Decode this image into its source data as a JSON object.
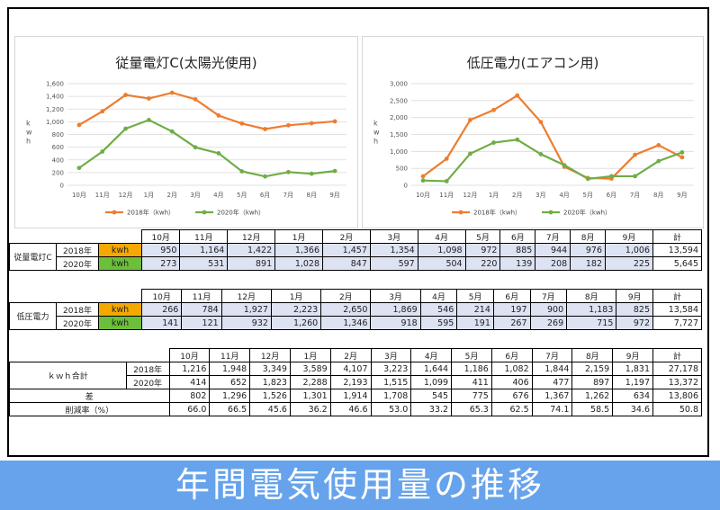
{
  "months": [
    "10月",
    "11月",
    "12月",
    "1月",
    "2月",
    "3月",
    "4月",
    "5月",
    "6月",
    "7月",
    "8月",
    "9月"
  ],
  "total_label": "計",
  "kwh_label": "kwh",
  "chart_data": [
    {
      "type": "line",
      "title": "従量電灯C(太陽光使用)",
      "ylabel": "kwh",
      "categories": [
        "10月",
        "11月",
        "12月",
        "1月",
        "2月",
        "3月",
        "4月",
        "5月",
        "6月",
        "7月",
        "8月",
        "9月"
      ],
      "ylim": [
        0,
        1600
      ],
      "yticks": [
        "0",
        "200",
        "400",
        "600",
        "800",
        "1,000",
        "1,200",
        "1,400",
        "1,600"
      ],
      "ytick_values": [
        0,
        200,
        400,
        600,
        800,
        1000,
        1200,
        1400,
        1600
      ],
      "legend_position": "bottom",
      "series": [
        {
          "name": "2018年（kwh）",
          "color": "#ed7d31",
          "values": [
            950,
            1164,
            1422,
            1366,
            1457,
            1354,
            1098,
            972,
            885,
            944,
            976,
            1006
          ]
        },
        {
          "name": "2020年（kwh）",
          "color": "#70ad47",
          "values": [
            273,
            531,
            891,
            1028,
            847,
            597,
            504,
            220,
            139,
            208,
            182,
            225
          ]
        }
      ]
    },
    {
      "type": "line",
      "title": "低圧電力(エアコン用)",
      "ylabel": "kwh",
      "categories": [
        "10月",
        "11月",
        "12月",
        "1月",
        "2月",
        "3月",
        "4月",
        "5月",
        "6月",
        "7月",
        "8月",
        "9月"
      ],
      "ylim": [
        0,
        3000
      ],
      "yticks": [
        "0",
        "500",
        "1,000",
        "1,500",
        "2,000",
        "2,500",
        "3,000"
      ],
      "ytick_values": [
        0,
        500,
        1000,
        1500,
        2000,
        2500,
        3000
      ],
      "legend_position": "bottom",
      "series": [
        {
          "name": "2018年（kwh）",
          "color": "#ed7d31",
          "values": [
            266,
            784,
            1927,
            2223,
            2650,
            1869,
            546,
            214,
            197,
            900,
            1183,
            825
          ]
        },
        {
          "name": "2020年（kwh）",
          "color": "#70ad47",
          "values": [
            141,
            121,
            932,
            1260,
            1346,
            918,
            595,
            191,
            267,
            269,
            715,
            972
          ]
        }
      ]
    }
  ],
  "table1": {
    "label": "従量電灯C",
    "rows": [
      {
        "year": "2018年",
        "values": [
          "950",
          "1,164",
          "1,422",
          "1,366",
          "1,457",
          "1,354",
          "1,098",
          "972",
          "885",
          "944",
          "976",
          "1,006"
        ],
        "total": "13,594"
      },
      {
        "year": "2020年",
        "values": [
          "273",
          "531",
          "891",
          "1,028",
          "847",
          "597",
          "504",
          "220",
          "139",
          "208",
          "182",
          "225"
        ],
        "total": "5,645"
      }
    ]
  },
  "table2": {
    "label": "低圧電力",
    "rows": [
      {
        "year": "2018年",
        "values": [
          "266",
          "784",
          "1,927",
          "2,223",
          "2,650",
          "1,869",
          "546",
          "214",
          "197",
          "900",
          "1,183",
          "825"
        ],
        "total": "13,584"
      },
      {
        "year": "2020年",
        "values": [
          "141",
          "121",
          "932",
          "1,260",
          "1,346",
          "918",
          "595",
          "191",
          "267",
          "269",
          "715",
          "972"
        ],
        "total": "7,727"
      }
    ]
  },
  "table3": {
    "label": "ｋｗｈ合計",
    "rows": [
      {
        "year": "2018年",
        "values": [
          "1,216",
          "1,948",
          "3,349",
          "3,589",
          "4,107",
          "3,223",
          "1,644",
          "1,186",
          "1,082",
          "1,844",
          "2,159",
          "1,831"
        ],
        "total": "27,178"
      },
      {
        "year": "2020年",
        "values": [
          "414",
          "652",
          "1,823",
          "2,288",
          "2,193",
          "1,515",
          "1,099",
          "411",
          "406",
          "477",
          "897",
          "1,197"
        ],
        "total": "13,372"
      }
    ],
    "diff_label": "差",
    "diff": {
      "values": [
        "802",
        "1,296",
        "1,526",
        "1,301",
        "1,914",
        "1,708",
        "545",
        "775",
        "676",
        "1,367",
        "1,262",
        "634"
      ],
      "total": "13,806"
    },
    "rate_label": "削減率（%）",
    "rate": {
      "values": [
        "66.0",
        "66.5",
        "45.6",
        "36.2",
        "46.6",
        "53.0",
        "33.2",
        "65.3",
        "62.5",
        "74.1",
        "58.5",
        "34.6"
      ],
      "total": "50.8"
    }
  },
  "banner_text": "年間電気使用量の推移"
}
